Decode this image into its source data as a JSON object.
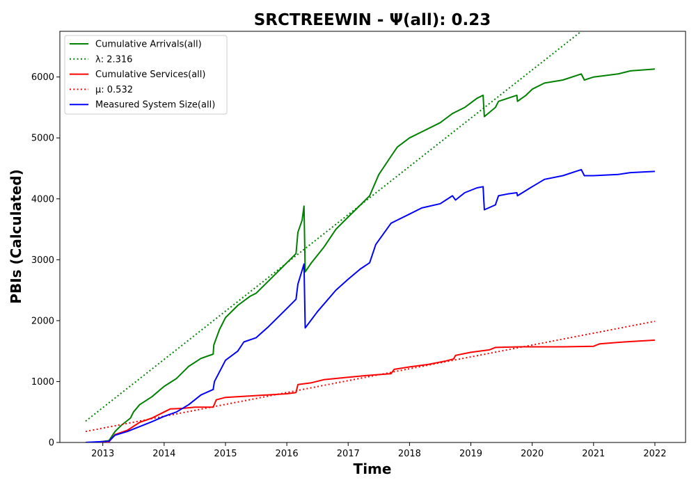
{
  "chart_data": {
    "type": "line",
    "title": "SRCTREEWIN -  Ψ(all): 0.23",
    "xlabel": "Time",
    "ylabel": "PBIs (Calculated)",
    "xlim": [
      2012.3,
      2022.5
    ],
    "ylim": [
      0,
      6750
    ],
    "x_ticks": [
      "2013",
      "2014",
      "2015",
      "2016",
      "2017",
      "2018",
      "2019",
      "2020",
      "2021",
      "2022"
    ],
    "y_ticks": [
      "0",
      "1000",
      "2000",
      "3000",
      "4000",
      "5000",
      "6000"
    ],
    "grid": false,
    "legend_position": "top-left",
    "series": [
      {
        "name": "Cumulative Arrivals(all)",
        "color": "#008000",
        "style": "solid",
        "points": [
          [
            2012.72,
            0
          ],
          [
            2012.95,
            10
          ],
          [
            2013.1,
            30
          ],
          [
            2013.2,
            180
          ],
          [
            2013.3,
            280
          ],
          [
            2013.45,
            400
          ],
          [
            2013.5,
            500
          ],
          [
            2013.6,
            620
          ],
          [
            2013.8,
            750
          ],
          [
            2014.0,
            920
          ],
          [
            2014.2,
            1050
          ],
          [
            2014.4,
            1250
          ],
          [
            2014.6,
            1380
          ],
          [
            2014.8,
            1450
          ],
          [
            2014.81,
            1600
          ],
          [
            2014.9,
            1850
          ],
          [
            2015.0,
            2050
          ],
          [
            2015.2,
            2250
          ],
          [
            2015.4,
            2400
          ],
          [
            2015.5,
            2450
          ],
          [
            2015.6,
            2550
          ],
          [
            2015.8,
            2750
          ],
          [
            2016.0,
            2950
          ],
          [
            2016.15,
            3100
          ],
          [
            2016.18,
            3450
          ],
          [
            2016.25,
            3650
          ],
          [
            2016.28,
            3880
          ],
          [
            2016.3,
            2800
          ],
          [
            2016.4,
            2950
          ],
          [
            2016.6,
            3200
          ],
          [
            2016.8,
            3500
          ],
          [
            2017.0,
            3700
          ],
          [
            2017.2,
            3900
          ],
          [
            2017.35,
            4050
          ],
          [
            2017.5,
            4400
          ],
          [
            2017.7,
            4700
          ],
          [
            2017.8,
            4850
          ],
          [
            2018.0,
            5000
          ],
          [
            2018.2,
            5100
          ],
          [
            2018.5,
            5250
          ],
          [
            2018.7,
            5400
          ],
          [
            2018.9,
            5500
          ],
          [
            2019.1,
            5650
          ],
          [
            2019.2,
            5700
          ],
          [
            2019.22,
            5350
          ],
          [
            2019.4,
            5500
          ],
          [
            2019.45,
            5600
          ],
          [
            2019.6,
            5650
          ],
          [
            2019.75,
            5700
          ],
          [
            2019.76,
            5600
          ],
          [
            2019.9,
            5700
          ],
          [
            2020.0,
            5800
          ],
          [
            2020.2,
            5900
          ],
          [
            2020.5,
            5950
          ],
          [
            2020.8,
            6050
          ],
          [
            2020.85,
            5950
          ],
          [
            2021.0,
            6000
          ],
          [
            2021.4,
            6050
          ],
          [
            2021.6,
            6100
          ],
          [
            2022.0,
            6130
          ]
        ]
      },
      {
        "name": "λ: 2.316",
        "color": "#008000",
        "style": "dotted",
        "points": [
          [
            2012.72,
            350
          ],
          [
            2020.8,
            6750
          ]
        ]
      },
      {
        "name": "Cumulative Services(all)",
        "color": "#ff0000",
        "style": "solid",
        "points": [
          [
            2012.72,
            0
          ],
          [
            2013.1,
            10
          ],
          [
            2013.2,
            130
          ],
          [
            2013.4,
            200
          ],
          [
            2013.6,
            330
          ],
          [
            2013.8,
            400
          ],
          [
            2014.0,
            500
          ],
          [
            2014.1,
            550
          ],
          [
            2014.3,
            560
          ],
          [
            2014.5,
            580
          ],
          [
            2014.8,
            580
          ],
          [
            2014.85,
            700
          ],
          [
            2015.0,
            740
          ],
          [
            2015.5,
            770
          ],
          [
            2016.0,
            800
          ],
          [
            2016.15,
            820
          ],
          [
            2016.18,
            950
          ],
          [
            2016.4,
            980
          ],
          [
            2016.6,
            1030
          ],
          [
            2017.0,
            1070
          ],
          [
            2017.3,
            1100
          ],
          [
            2017.7,
            1130
          ],
          [
            2017.75,
            1200
          ],
          [
            2018.0,
            1240
          ],
          [
            2018.3,
            1280
          ],
          [
            2018.6,
            1340
          ],
          [
            2018.72,
            1370
          ],
          [
            2018.75,
            1430
          ],
          [
            2019.0,
            1480
          ],
          [
            2019.3,
            1520
          ],
          [
            2019.4,
            1560
          ],
          [
            2019.8,
            1570
          ],
          [
            2020.5,
            1570
          ],
          [
            2021.0,
            1580
          ],
          [
            2021.1,
            1620
          ],
          [
            2021.5,
            1650
          ],
          [
            2022.0,
            1680
          ]
        ]
      },
      {
        "name": "μ: 0.532",
        "color": "#ff0000",
        "style": "dotted",
        "points": [
          [
            2012.72,
            180
          ],
          [
            2022.0,
            1990
          ]
        ]
      },
      {
        "name": "Measured System Size(all)",
        "color": "#0000ff",
        "style": "solid",
        "points": [
          [
            2012.72,
            0
          ],
          [
            2013.1,
            20
          ],
          [
            2013.2,
            120
          ],
          [
            2013.4,
            180
          ],
          [
            2013.6,
            260
          ],
          [
            2013.8,
            340
          ],
          [
            2014.0,
            430
          ],
          [
            2014.2,
            500
          ],
          [
            2014.4,
            620
          ],
          [
            2014.6,
            780
          ],
          [
            2014.8,
            870
          ],
          [
            2014.82,
            1000
          ],
          [
            2015.0,
            1350
          ],
          [
            2015.2,
            1500
          ],
          [
            2015.3,
            1650
          ],
          [
            2015.5,
            1720
          ],
          [
            2015.7,
            1900
          ],
          [
            2016.0,
            2200
          ],
          [
            2016.15,
            2350
          ],
          [
            2016.18,
            2600
          ],
          [
            2016.28,
            2930
          ],
          [
            2016.3,
            1880
          ],
          [
            2016.5,
            2150
          ],
          [
            2016.8,
            2500
          ],
          [
            2017.0,
            2680
          ],
          [
            2017.2,
            2850
          ],
          [
            2017.35,
            2950
          ],
          [
            2017.45,
            3250
          ],
          [
            2017.7,
            3600
          ],
          [
            2017.8,
            3650
          ],
          [
            2018.0,
            3750
          ],
          [
            2018.2,
            3850
          ],
          [
            2018.5,
            3920
          ],
          [
            2018.7,
            4050
          ],
          [
            2018.75,
            3980
          ],
          [
            2018.9,
            4100
          ],
          [
            2019.1,
            4180
          ],
          [
            2019.2,
            4200
          ],
          [
            2019.22,
            3820
          ],
          [
            2019.4,
            3900
          ],
          [
            2019.45,
            4050
          ],
          [
            2019.6,
            4080
          ],
          [
            2019.75,
            4100
          ],
          [
            2019.76,
            4050
          ],
          [
            2020.0,
            4200
          ],
          [
            2020.2,
            4320
          ],
          [
            2020.5,
            4380
          ],
          [
            2020.8,
            4480
          ],
          [
            2020.85,
            4380
          ],
          [
            2021.0,
            4380
          ],
          [
            2021.4,
            4400
          ],
          [
            2021.6,
            4430
          ],
          [
            2022.0,
            4450
          ]
        ]
      }
    ]
  }
}
